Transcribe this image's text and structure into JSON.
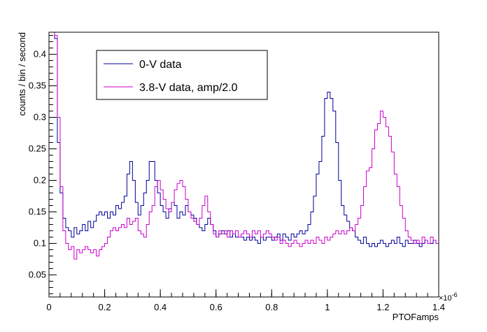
{
  "chart_data": {
    "type": "line",
    "xlabel": "PTOFamps",
    "ylabel": "counts / bin / second",
    "x_exponent_label": "×10",
    "x_exponent_power": "-6",
    "xlim": [
      0,
      1.4
    ],
    "ylim": [
      0.015,
      0.435
    ],
    "x_ticks": [
      0,
      0.2,
      0.4,
      0.6,
      0.8,
      1,
      1.2,
      1.4
    ],
    "x_tick_labels": [
      "0",
      "0.2",
      "0.4",
      "0.6",
      "0.8",
      "1",
      "1.2",
      "1.4"
    ],
    "y_ticks": [
      0.05,
      0.1,
      0.15,
      0.2,
      0.25,
      0.3,
      0.35,
      0.4
    ],
    "y_tick_labels": [
      "0.05",
      "0.1",
      "0.15",
      "0.2",
      "0.25",
      "0.3",
      "0.35",
      "0.4"
    ],
    "legend_position": "top-left",
    "bin_width": 0.01,
    "x_start": 0.0,
    "series": [
      {
        "name": "0-V data",
        "color": "#000099",
        "values": [
          0.435,
          0.435,
          0.425,
          0.26,
          0.18,
          0.14,
          0.125,
          0.12,
          0.11,
          0.125,
          0.115,
          0.12,
          0.13,
          0.12,
          0.135,
          0.125,
          0.135,
          0.145,
          0.15,
          0.145,
          0.15,
          0.14,
          0.15,
          0.145,
          0.16,
          0.155,
          0.165,
          0.175,
          0.21,
          0.23,
          0.2,
          0.165,
          0.145,
          0.16,
          0.18,
          0.2,
          0.23,
          0.23,
          0.2,
          0.18,
          0.16,
          0.15,
          0.14,
          0.155,
          0.165,
          0.16,
          0.14,
          0.15,
          0.145,
          0.16,
          0.15,
          0.145,
          0.14,
          0.13,
          0.125,
          0.12,
          0.13,
          0.14,
          0.13,
          0.12,
          0.11,
          0.115,
          0.12,
          0.115,
          0.12,
          0.11,
          0.115,
          0.11,
          0.11,
          0.11,
          0.105,
          0.11,
          0.105,
          0.11,
          0.105,
          0.1,
          0.11,
          0.105,
          0.11,
          0.11,
          0.105,
          0.11,
          0.115,
          0.105,
          0.115,
          0.11,
          0.105,
          0.115,
          0.11,
          0.115,
          0.12,
          0.115,
          0.12,
          0.13,
          0.15,
          0.175,
          0.21,
          0.23,
          0.27,
          0.33,
          0.34,
          0.33,
          0.31,
          0.26,
          0.2,
          0.16,
          0.145,
          0.135,
          0.125,
          0.12,
          0.11,
          0.105,
          0.1,
          0.11,
          0.1,
          0.095,
          0.1,
          0.095,
          0.1,
          0.105,
          0.1,
          0.095,
          0.1,
          0.105,
          0.1,
          0.11,
          0.1,
          0.095,
          0.105,
          0.1,
          0.1,
          0.105,
          0.1,
          0.095,
          0.1,
          0.105,
          0.1,
          0.1,
          0.105,
          0.1
        ]
      },
      {
        "name": "3.8-V data, amp/2.0",
        "color": "#cc00cc",
        "values": [
          0.435,
          0.435,
          0.43,
          0.3,
          0.19,
          0.12,
          0.1,
          0.09,
          0.095,
          0.075,
          0.09,
          0.085,
          0.09,
          0.095,
          0.09,
          0.085,
          0.09,
          0.08,
          0.09,
          0.095,
          0.1,
          0.11,
          0.12,
          0.125,
          0.12,
          0.125,
          0.13,
          0.125,
          0.14,
          0.13,
          0.135,
          0.14,
          0.12,
          0.115,
          0.11,
          0.13,
          0.15,
          0.16,
          0.19,
          0.2,
          0.185,
          0.17,
          0.155,
          0.15,
          0.165,
          0.185,
          0.195,
          0.2,
          0.19,
          0.17,
          0.15,
          0.14,
          0.135,
          0.13,
          0.14,
          0.16,
          0.175,
          0.15,
          0.13,
          0.115,
          0.11,
          0.12,
          0.115,
          0.12,
          0.11,
          0.12,
          0.115,
          0.12,
          0.11,
          0.115,
          0.12,
          0.115,
          0.11,
          0.12,
          0.115,
          0.12,
          0.11,
          0.115,
          0.12,
          0.115,
          0.11,
          0.105,
          0.11,
          0.1,
          0.105,
          0.1,
          0.095,
          0.1,
          0.105,
          0.1,
          0.095,
          0.1,
          0.105,
          0.1,
          0.105,
          0.1,
          0.11,
          0.105,
          0.1,
          0.11,
          0.105,
          0.11,
          0.115,
          0.12,
          0.115,
          0.12,
          0.115,
          0.12,
          0.125,
          0.12,
          0.13,
          0.14,
          0.16,
          0.19,
          0.215,
          0.22,
          0.25,
          0.28,
          0.29,
          0.31,
          0.3,
          0.285,
          0.27,
          0.245,
          0.21,
          0.19,
          0.16,
          0.14,
          0.12,
          0.11,
          0.105,
          0.1,
          0.105,
          0.1,
          0.11,
          0.105,
          0.1,
          0.11,
          0.105,
          0.1
        ]
      }
    ]
  }
}
